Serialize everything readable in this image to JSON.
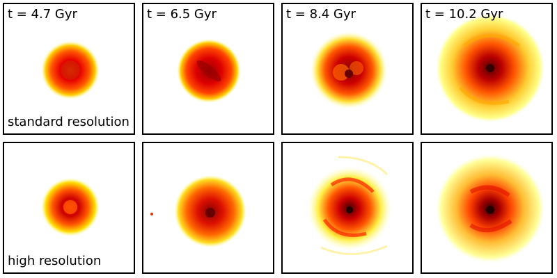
{
  "time_labels": [
    "t = 4.7 Gyr",
    "t = 6.5 Gyr",
    "t = 8.4 Gyr",
    "t = 10.2 Gyr"
  ],
  "row_labels": [
    "standard resolution",
    "high resolution"
  ],
  "colors": {
    "frame": "#000000",
    "background": "#ffffff",
    "outer_glow": "#ffff66",
    "mid": "#ff9900",
    "inner": "#e60000",
    "core": "#660000"
  }
}
